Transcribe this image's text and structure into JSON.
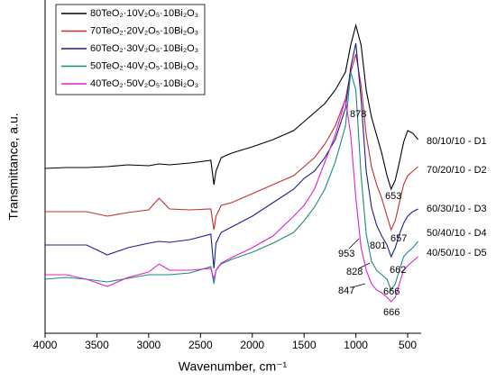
{
  "chart_data": {
    "type": "line",
    "xlabel": "Wavenumber, cm⁻¹",
    "ylabel": "Transmittance, a.u.",
    "x": [
      4000,
      3800,
      3600,
      3400,
      3200,
      3000,
      2900,
      2800,
      2600,
      2400,
      2370,
      2350,
      2300,
      2200,
      2000,
      1800,
      1600,
      1500,
      1400,
      1300,
      1200,
      1100,
      1050,
      1000,
      950,
      900,
      850,
      800,
      750,
      700,
      660,
      620,
      580,
      540,
      500,
      450,
      400
    ],
    "series": [
      {
        "name": "80TeO₂·10V₂O₅·10Bi₂O₃",
        "color": "#000000",
        "values": [
          183,
          184,
          184,
          185,
          187,
          186,
          188,
          187,
          189,
          192,
          165,
          180,
          195,
          200,
          207,
          215,
          225,
          235,
          245,
          255,
          270,
          290,
          320,
          342,
          320,
          270,
          240,
          220,
          200,
          175,
          160,
          170,
          190,
          212,
          225,
          222,
          215
        ]
      },
      {
        "name": "70TeO₂·20V₂O₅·10Bi₂O₃",
        "color": "#c0302a",
        "values": [
          135,
          135,
          135,
          130,
          134,
          137,
          150,
          138,
          137,
          138,
          115,
          130,
          142,
          145,
          155,
          165,
          175,
          185,
          195,
          210,
          230,
          260,
          290,
          310,
          275,
          220,
          185,
          165,
          150,
          130,
          115,
          125,
          145,
          165,
          175,
          180,
          185
        ]
      },
      {
        "name": "60TeO₂·30V₂O₅·10Bi₂O₃",
        "color": "#1c1c8e",
        "values": [
          98,
          98,
          98,
          87,
          95,
          100,
          102,
          101,
          104,
          110,
          72,
          100,
          112,
          118,
          130,
          145,
          160,
          172,
          180,
          195,
          215,
          250,
          295,
          322,
          260,
          180,
          140,
          120,
          108,
          98,
          85,
          95,
          110,
          122,
          130,
          135,
          138
        ]
      },
      {
        "name": "50TeO₂·40V₂O₅·10Bi₂O₃",
        "color": "#1a8a80",
        "values": [
          60,
          62,
          60,
          57,
          61,
          65,
          65,
          65,
          67,
          74,
          55,
          70,
          77,
          82,
          90,
          100,
          112,
          125,
          140,
          160,
          190,
          230,
          290,
          270,
          175,
          110,
          80,
          70,
          65,
          60,
          48,
          55,
          70,
          85,
          90,
          95,
          102
        ]
      },
      {
        "name": "40TeO₂·50V₂O₅·10Bi₂O₃",
        "color": "#e020d0",
        "values": [
          65,
          65,
          60,
          52,
          62,
          68,
          77,
          70,
          70,
          72,
          60,
          70,
          78,
          84,
          95,
          108,
          130,
          142,
          160,
          190,
          220,
          260,
          220,
          150,
          95,
          70,
          55,
          48,
          45,
          40,
          35,
          40,
          55,
          70,
          75,
          80,
          85
        ]
      }
    ],
    "curve_labels": [
      "80/10/10 - D1",
      "70/20/10 - D2",
      "60/30/10 - D3",
      "50/40/10 - D4",
      "40/50/10 - D5"
    ],
    "peak_labels": [
      "878",
      "653",
      "657",
      "662",
      "666",
      "666",
      "953",
      "801",
      "828",
      "847"
    ],
    "xlim": [
      4000,
      370
    ],
    "xticks": [
      4000,
      3500,
      3000,
      2500,
      2000,
      1500,
      1000,
      500
    ],
    "ylim": [
      0,
      370
    ],
    "legend": "upper left"
  }
}
